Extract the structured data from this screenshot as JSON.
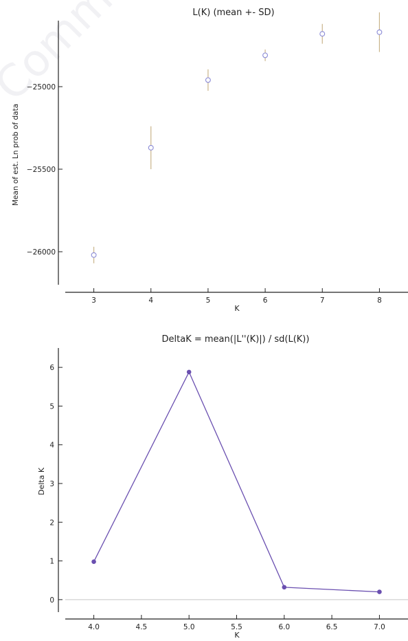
{
  "watermark": "Commercial use",
  "chart_data": [
    {
      "type": "scatter",
      "title": "L(K) (mean +- SD)",
      "xlabel": "K",
      "ylabel": "Mean of est. Ln prob of data",
      "xlim": [
        2.5,
        8.5
      ],
      "ylim": [
        -26200,
        -24600
      ],
      "xticks": [
        3,
        4,
        5,
        6,
        7,
        8
      ],
      "yticks": [
        -26000,
        -25500,
        -25000
      ],
      "x": [
        3,
        4,
        5,
        6,
        7,
        8
      ],
      "y": [
        -26020,
        -25370,
        -24960,
        -24810,
        -24680,
        -24670
      ],
      "sd": [
        50,
        130,
        65,
        35,
        60,
        120
      ],
      "marker": "open circle",
      "color": "#8a8ad6",
      "errorbar_color": "#c9b48a",
      "grid": false
    },
    {
      "type": "line",
      "title": "DeltaK = mean(|L''(K)|) / sd(L(K))",
      "xlabel": "K",
      "ylabel": "Delta K",
      "xlim": [
        3.7,
        7.3
      ],
      "ylim": [
        -0.5,
        6.5
      ],
      "xticks": [
        "4.0",
        "4.5",
        "5.0",
        "5.5",
        "6.0",
        "6.5",
        "7.0"
      ],
      "yticks": [
        "0",
        "1",
        "2",
        "3",
        "4",
        "5",
        "6"
      ],
      "x": [
        4.0,
        5.0,
        6.0,
        7.0
      ],
      "y": [
        0.98,
        5.88,
        0.32,
        0.2
      ],
      "color": "#6a4fb0",
      "zero_line": true,
      "grid": false
    }
  ]
}
